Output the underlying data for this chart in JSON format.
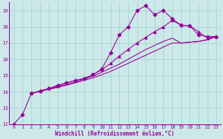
{
  "xlabel": "Windchill (Refroidissement éolien,°C)",
  "bg_color": "#cce8e8",
  "grid_color": "#aad4d4",
  "line_color": "#990099",
  "xlim": [
    -0.5,
    23.5
  ],
  "ylim": [
    12,
    19.5
  ],
  "yticks": [
    12,
    13,
    14,
    15,
    16,
    17,
    18,
    19
  ],
  "xticks": [
    0,
    1,
    2,
    3,
    4,
    5,
    6,
    7,
    8,
    9,
    10,
    11,
    12,
    13,
    14,
    15,
    16,
    17,
    18,
    19,
    20,
    21,
    22,
    23
  ],
  "series": [
    {
      "x": [
        0,
        1,
        2,
        3,
        4,
        5,
        6,
        7,
        8,
        9,
        10,
        11,
        12,
        13,
        14,
        15,
        16,
        17,
        18,
        19,
        20,
        21,
        22,
        23
      ],
      "y": [
        12.0,
        12.6,
        13.9,
        14.05,
        14.2,
        14.4,
        14.55,
        14.7,
        14.8,
        15.05,
        15.4,
        16.4,
        17.5,
        18.0,
        19.0,
        19.3,
        18.75,
        19.0,
        18.5,
        18.1,
        18.05,
        17.5,
        17.4,
        17.4
      ],
      "marker": "D",
      "markersize": 2.5
    },
    {
      "x": [
        2,
        3,
        4,
        5,
        6,
        7,
        8,
        9,
        10,
        11,
        12,
        13,
        14,
        15,
        16,
        17,
        18,
        19,
        20,
        21,
        22,
        23
      ],
      "y": [
        13.9,
        14.05,
        14.2,
        14.35,
        14.55,
        14.7,
        14.82,
        15.05,
        15.35,
        15.75,
        16.2,
        16.6,
        17.0,
        17.35,
        17.7,
        18.0,
        18.4,
        18.1,
        18.05,
        17.7,
        17.3,
        17.4
      ],
      "marker": "^",
      "markersize": 2.5
    },
    {
      "x": [
        2,
        3,
        4,
        5,
        6,
        7,
        8,
        9,
        10,
        11,
        12,
        13,
        14,
        15,
        16,
        17,
        18,
        19,
        20,
        21,
        22,
        23
      ],
      "y": [
        13.9,
        14.02,
        14.15,
        14.27,
        14.4,
        14.55,
        14.7,
        14.85,
        15.05,
        15.25,
        15.5,
        15.75,
        16.0,
        16.25,
        16.5,
        16.75,
        17.0,
        17.0,
        17.05,
        17.1,
        17.2,
        17.4
      ],
      "marker": null,
      "markersize": 0
    },
    {
      "x": [
        2,
        3,
        4,
        5,
        6,
        7,
        8,
        9,
        10,
        11,
        12,
        13,
        14,
        15,
        16,
        17,
        18,
        19,
        20,
        21,
        22,
        23
      ],
      "y": [
        13.9,
        14.03,
        14.17,
        14.3,
        14.45,
        14.6,
        14.78,
        14.95,
        15.2,
        15.45,
        15.7,
        16.0,
        16.3,
        16.6,
        16.85,
        17.1,
        17.3,
        17.0,
        17.05,
        17.1,
        17.2,
        17.4
      ],
      "marker": null,
      "markersize": 0
    }
  ]
}
